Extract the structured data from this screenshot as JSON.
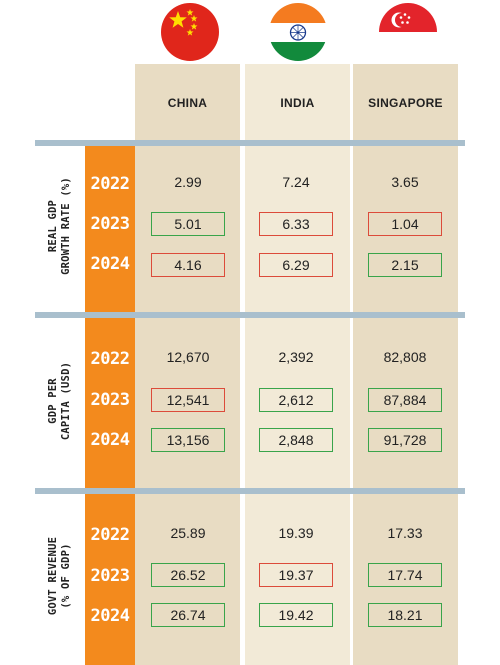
{
  "colors": {
    "up": "#39a44a",
    "down": "#dc4b3a",
    "year_band": "#f38a1d",
    "divider": "#a9bfcd"
  },
  "columns": [
    {
      "name": "CHINA",
      "flag": "china-flag"
    },
    {
      "name": "INDIA",
      "flag": "india-flag"
    },
    {
      "name": "SINGAPORE",
      "flag": "singapore-flag"
    }
  ],
  "chart_data": {
    "type": "table",
    "columns": [
      "CHINA",
      "INDIA",
      "SINGAPORE"
    ],
    "sections": [
      {
        "label_lines": [
          "REAL GDP",
          "GROWTH RATE (%)"
        ],
        "rows": [
          {
            "year": "2022",
            "values": [
              "2.99",
              "7.24",
              "3.65"
            ],
            "trend": [
              "",
              "",
              ""
            ]
          },
          {
            "year": "2023",
            "values": [
              "5.01",
              "6.33",
              "1.04"
            ],
            "trend": [
              "up",
              "down",
              "down"
            ]
          },
          {
            "year": "2024",
            "values": [
              "4.16",
              "6.29",
              "2.15"
            ],
            "trend": [
              "down",
              "down",
              "up"
            ]
          }
        ]
      },
      {
        "label_lines": [
          "GDP PER",
          "CAPITA (USD)"
        ],
        "rows": [
          {
            "year": "2022",
            "values": [
              "12,670",
              "2,392",
              "82,808"
            ],
            "trend": [
              "",
              "",
              ""
            ]
          },
          {
            "year": "2023",
            "values": [
              "12,541",
              "2,612",
              "87,884"
            ],
            "trend": [
              "down",
              "up",
              "up"
            ]
          },
          {
            "year": "2024",
            "values": [
              "13,156",
              "2,848",
              "91,728"
            ],
            "trend": [
              "up",
              "up",
              "up"
            ]
          }
        ]
      },
      {
        "label_lines": [
          "GOVT REVENUE",
          "(% OF GDP)"
        ],
        "rows": [
          {
            "year": "2022",
            "values": [
              "25.89",
              "19.39",
              "17.33"
            ],
            "trend": [
              "",
              "",
              ""
            ]
          },
          {
            "year": "2023",
            "values": [
              "26.52",
              "19.37",
              "17.74"
            ],
            "trend": [
              "up",
              "down",
              "up"
            ]
          },
          {
            "year": "2024",
            "values": [
              "26.74",
              "19.42",
              "18.21"
            ],
            "trend": [
              "up",
              "up",
              "up"
            ]
          }
        ]
      }
    ]
  }
}
